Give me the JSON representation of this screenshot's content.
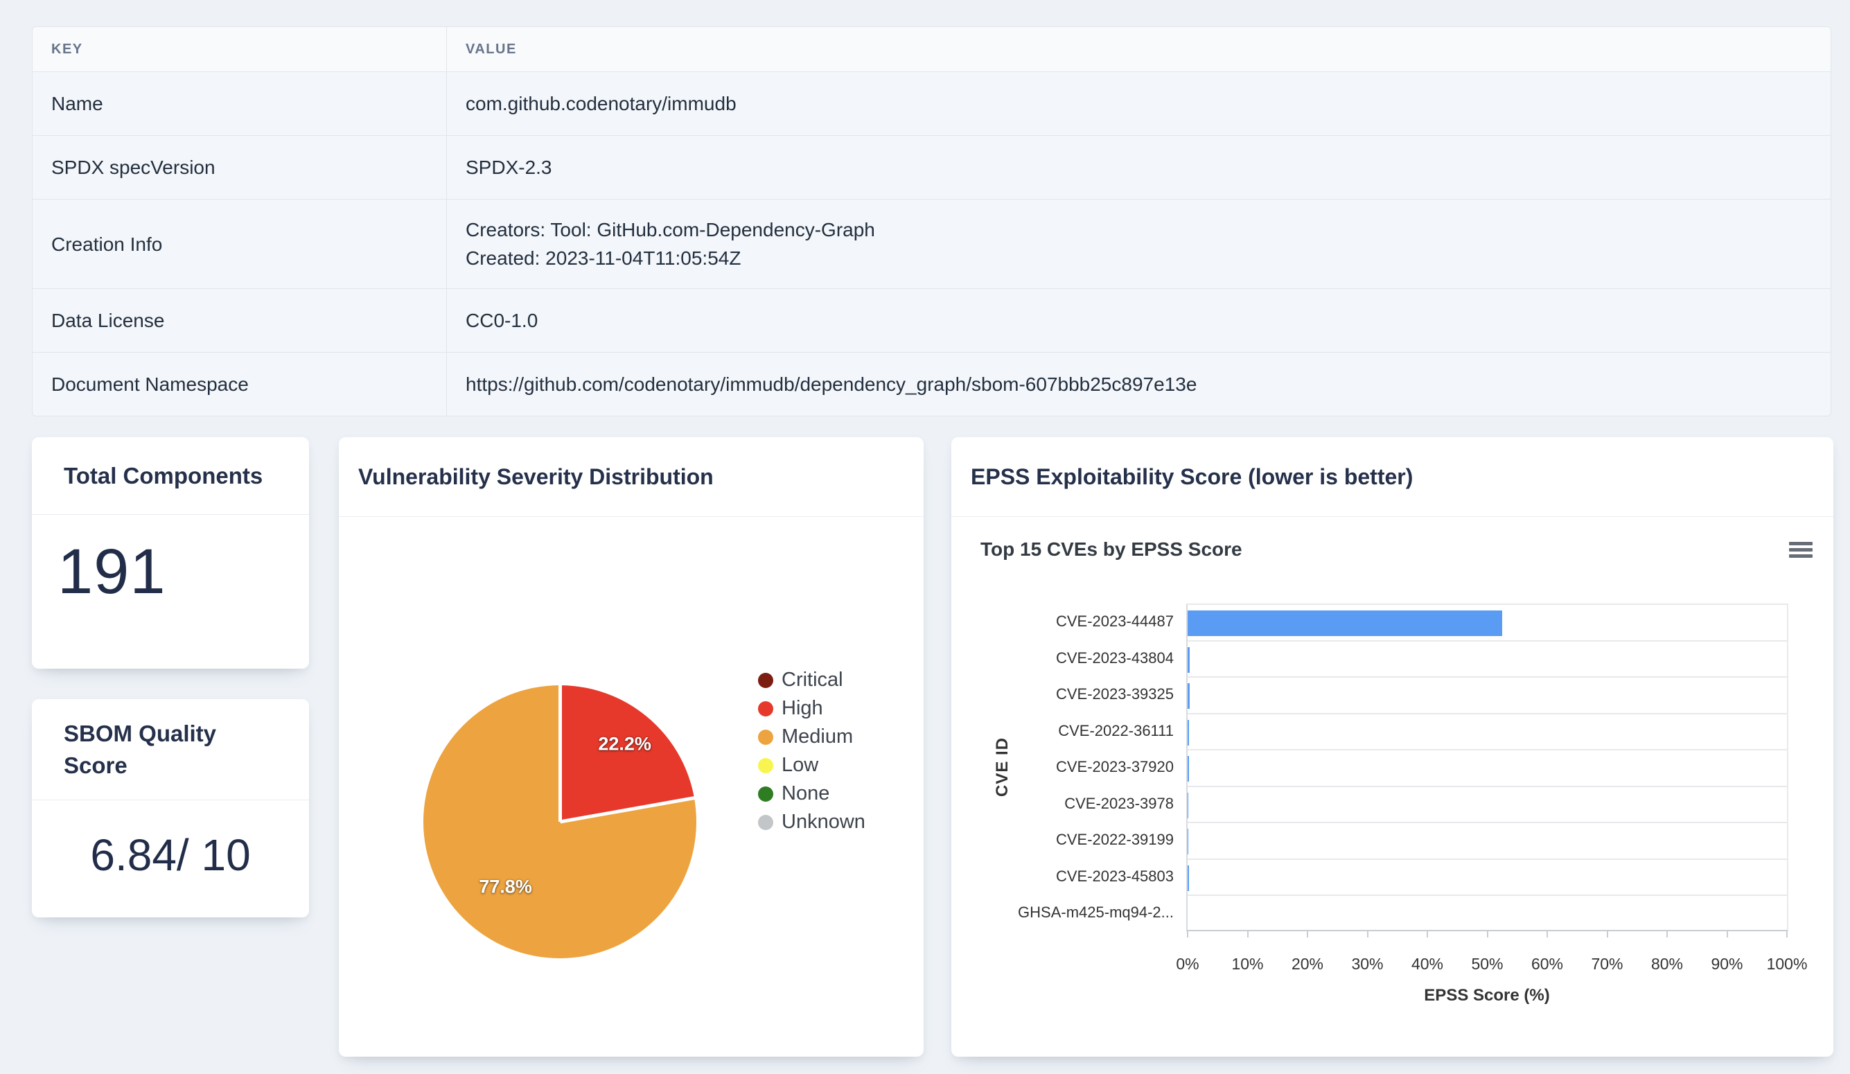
{
  "page": {
    "background": "#eef2f7"
  },
  "metadata_table": {
    "headers": [
      "KEY",
      "VALUE"
    ],
    "rows": [
      {
        "key": "Name",
        "value_lines": [
          "com.github.codenotary/immudb"
        ]
      },
      {
        "key": "SPDX specVersion",
        "value_lines": [
          "SPDX-2.3"
        ]
      },
      {
        "key": "Creation Info",
        "value_lines": [
          "Creators: Tool: GitHub.com-Dependency-Graph",
          "Created: 2023-11-04T11:05:54Z"
        ]
      },
      {
        "key": "Data License",
        "value_lines": [
          "CC0-1.0"
        ]
      },
      {
        "key": "Document Namespace",
        "value_lines": [
          "https://github.com/codenotary/immudb/dependency_graph/sbom-607bbb25c897e13e"
        ]
      }
    ]
  },
  "cards": {
    "total_components": {
      "title": "Total Components",
      "value": "191"
    },
    "sbom_quality": {
      "title": "SBOM Quality Score",
      "value": "6.84/ 10"
    }
  },
  "severity_panel": {
    "title": "Vulnerability Severity Distribution"
  },
  "epss_panel": {
    "title": "EPSS Exploitability Score (lower is better)",
    "chart_heading": "Top 15 CVEs by EPSS Score",
    "menu_icon": "hamburger-menu-icon"
  },
  "chart_data": [
    {
      "type": "pie",
      "title": "Vulnerability Severity Distribution",
      "labels": [
        "Critical",
        "High",
        "Medium",
        "Low",
        "None",
        "Unknown"
      ],
      "values": [
        0,
        22.2,
        77.8,
        0,
        0,
        0
      ],
      "colors": [
        "#7c1d12",
        "#e6392c",
        "#eda33f",
        "#f8f551",
        "#2e7d22",
        "#c3c6c9"
      ],
      "slice_labels": [
        "22.2%",
        "77.8%"
      ],
      "slice_label_color": "#ffffff",
      "legend_position": "right",
      "start_angle_deg": 0
    },
    {
      "type": "bar",
      "orientation": "horizontal",
      "title": "Top 15 CVEs by EPSS Score",
      "categories": [
        "CVE-2023-44487",
        "CVE-2023-43804",
        "CVE-2023-39325",
        "CVE-2022-36111",
        "CVE-2023-37920",
        "CVE-2023-3978",
        "CVE-2022-39199",
        "CVE-2023-45803",
        "GHSA-m425-mq94-2..."
      ],
      "values": [
        52.5,
        0.35,
        0.33,
        0.18,
        0.18,
        0.17,
        0.16,
        0.18,
        0
      ],
      "bar_color": "#5a9cf4",
      "xlabel": "EPSS Score (%)",
      "ylabel": "CVE ID",
      "xlim": [
        0,
        100
      ],
      "xtick_labels": [
        "0%",
        "10%",
        "20%",
        "30%",
        "40%",
        "50%",
        "60%",
        "70%",
        "80%",
        "90%",
        "100%"
      ],
      "grid": "category-bands"
    }
  ]
}
